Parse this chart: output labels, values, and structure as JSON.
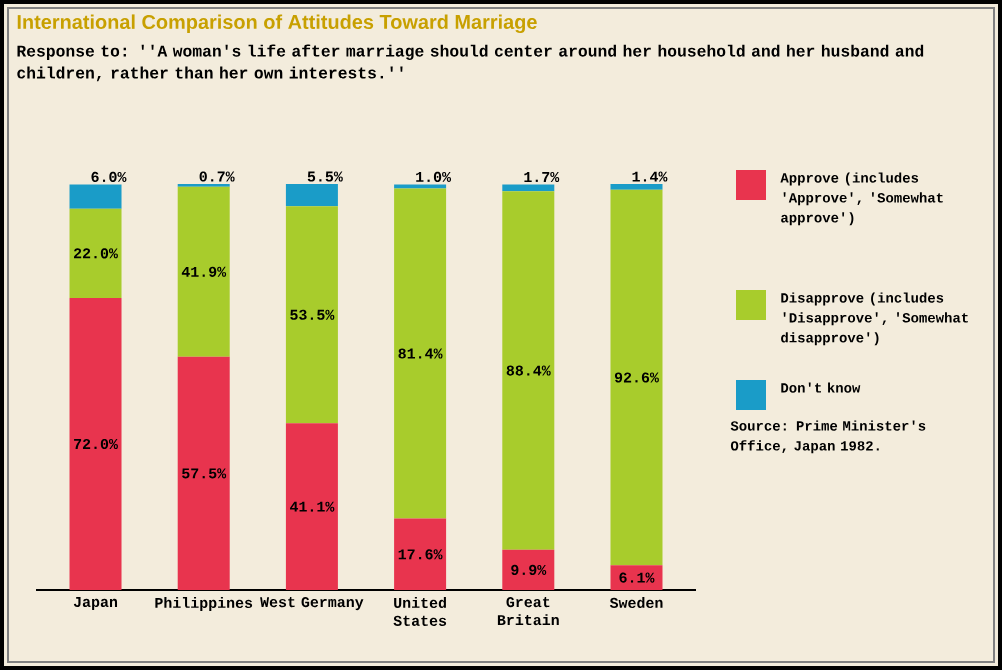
{
  "chart_data": {
    "type": "bar",
    "stacked": true,
    "legend": "right",
    "title": "International Comparison of Attitudes Toward Marriage",
    "subtitle": "Response to: ''A woman's life after marriage should center around her household and her husband and children, rather than her own interests.''",
    "categories": [
      "Japan",
      "Philippines",
      "West Germany",
      "United States",
      "Great Britain",
      "Sweden"
    ],
    "series": [
      {
        "name": "**Approve** (includes 'Approve', 'Somewhat approve')",
        "color": "#e8344e",
        "values": [
          72.0,
          57.5,
          41.1,
          17.6,
          9.9,
          6.1
        ],
        "value_labels": [
          "72.0%",
          "57.5%",
          "41.1%",
          "17.6%",
          "9.9%",
          "6.1%"
        ]
      },
      {
        "name": "**Disapprove** (includes 'Disapprove', 'Somewhat disapprove')",
        "color": "#a8cc2c",
        "values": [
          22.0,
          41.9,
          53.5,
          81.4,
          88.4,
          92.6
        ],
        "value_labels": [
          "22.0%",
          "41.9%",
          "53.5%",
          "81.4%",
          "88.4%",
          "92.6%"
        ]
      },
      {
        "name": "**Don't know**",
        "color": "#1a9cc8",
        "values": [
          6.0,
          0.7,
          5.5,
          1.0,
          1.7,
          1.4
        ],
        "value_labels": [
          "6.0%",
          "0.7%",
          "5.5%",
          "1.0%",
          "1.7%",
          "1.4%"
        ]
      }
    ],
    "annotations": [
      "Source: Prime Minister's Office, Japan 1982."
    ]
  }
}
